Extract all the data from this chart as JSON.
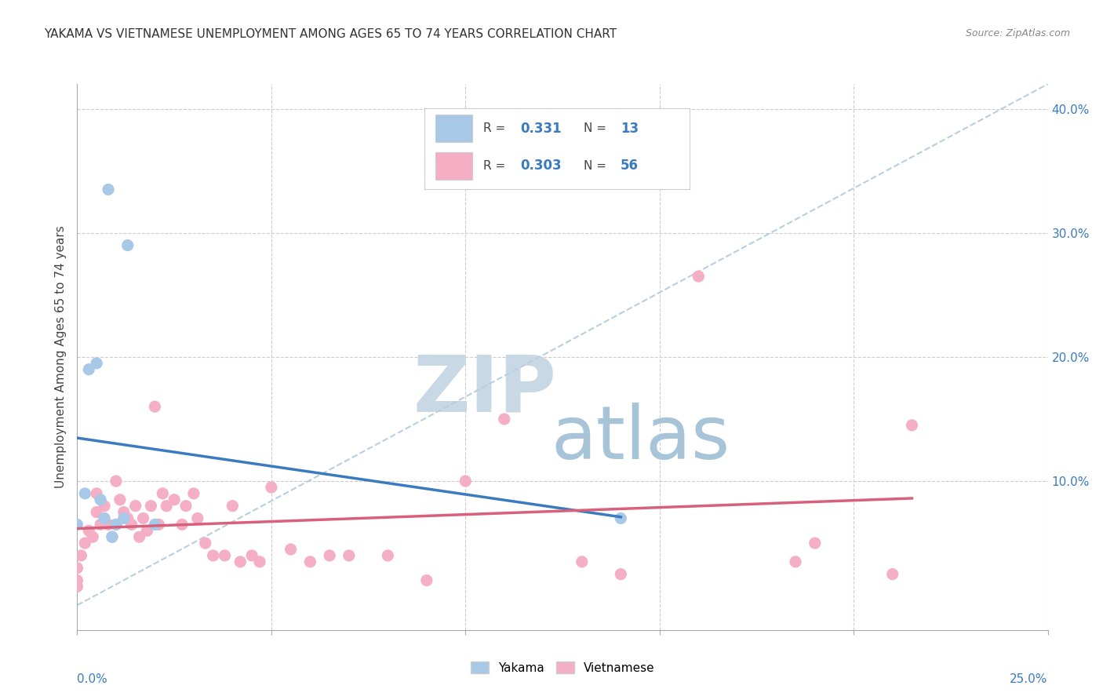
{
  "title": "YAKAMA VS VIETNAMESE UNEMPLOYMENT AMONG AGES 65 TO 74 YEARS CORRELATION CHART",
  "source": "Source: ZipAtlas.com",
  "ylabel": "Unemployment Among Ages 65 to 74 years",
  "xlim": [
    0.0,
    0.25
  ],
  "ylim": [
    -0.02,
    0.42
  ],
  "yticks": [
    0.0,
    0.1,
    0.2,
    0.3,
    0.4
  ],
  "ytick_labels": [
    "",
    "10.0%",
    "20.0%",
    "30.0%",
    "40.0%"
  ],
  "yakama_color": "#a8c8e8",
  "vietnamese_color": "#f4afc4",
  "trendline_yakama_color": "#3a7bbf",
  "trendline_vietnamese_color": "#d9607a",
  "dashed_line_color": "#b8cfe0",
  "watermark_zip_color": "#d0dce8",
  "watermark_atlas_color": "#b8ccd8",
  "yakama_x": [
    0.0,
    0.002,
    0.003,
    0.005,
    0.006,
    0.007,
    0.008,
    0.009,
    0.01,
    0.012,
    0.013,
    0.02,
    0.14
  ],
  "yakama_y": [
    0.065,
    0.09,
    0.19,
    0.195,
    0.085,
    0.07,
    0.335,
    0.055,
    0.065,
    0.07,
    0.29,
    0.065,
    0.07
  ],
  "vietnamese_x": [
    0.0,
    0.0,
    0.0,
    0.001,
    0.002,
    0.003,
    0.004,
    0.005,
    0.005,
    0.006,
    0.007,
    0.008,
    0.009,
    0.01,
    0.01,
    0.011,
    0.012,
    0.013,
    0.014,
    0.015,
    0.016,
    0.017,
    0.018,
    0.019,
    0.02,
    0.021,
    0.022,
    0.023,
    0.025,
    0.027,
    0.028,
    0.03,
    0.031,
    0.033,
    0.035,
    0.038,
    0.04,
    0.042,
    0.045,
    0.047,
    0.05,
    0.055,
    0.06,
    0.065,
    0.07,
    0.08,
    0.09,
    0.1,
    0.11,
    0.13,
    0.14,
    0.16,
    0.185,
    0.19,
    0.21,
    0.215
  ],
  "vietnamese_y": [
    0.015,
    0.02,
    0.03,
    0.04,
    0.05,
    0.06,
    0.055,
    0.075,
    0.09,
    0.065,
    0.08,
    0.065,
    0.055,
    0.1,
    0.065,
    0.085,
    0.075,
    0.07,
    0.065,
    0.08,
    0.055,
    0.07,
    0.06,
    0.08,
    0.16,
    0.065,
    0.09,
    0.08,
    0.085,
    0.065,
    0.08,
    0.09,
    0.07,
    0.05,
    0.04,
    0.04,
    0.08,
    0.035,
    0.04,
    0.035,
    0.095,
    0.045,
    0.035,
    0.04,
    0.04,
    0.04,
    0.02,
    0.1,
    0.15,
    0.035,
    0.025,
    0.265,
    0.035,
    0.05,
    0.025,
    0.145
  ]
}
